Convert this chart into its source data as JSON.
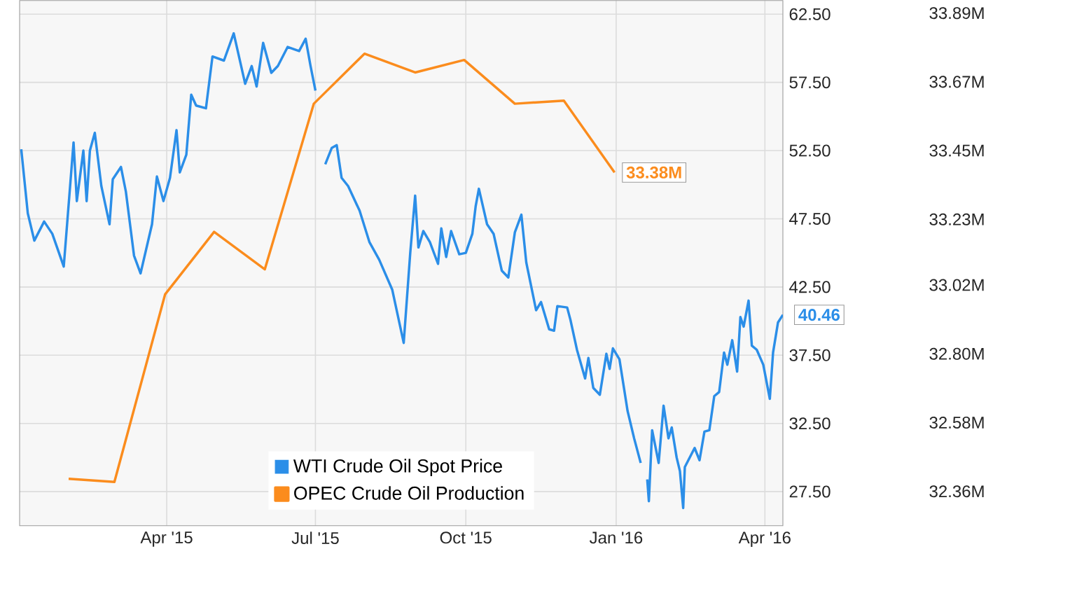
{
  "chart_data": {
    "type": "line",
    "xlim": [
      "2015-01-01",
      "2016-04-12"
    ],
    "xticks": [
      {
        "value": "2015-04-01",
        "label": "Apr '15"
      },
      {
        "value": "2015-07-01",
        "label": "Jul '15"
      },
      {
        "value": "2015-10-01",
        "label": "Oct '15"
      },
      {
        "value": "2016-01-01",
        "label": "Jan '16"
      },
      {
        "value": "2016-04-01",
        "label": "Apr '16"
      }
    ],
    "ylim": [
      25,
      63.5
    ],
    "yticks": [
      {
        "value": 27.5,
        "label": "27.50"
      },
      {
        "value": 32.5,
        "label": "32.50"
      },
      {
        "value": 37.5,
        "label": "37.50"
      },
      {
        "value": 42.5,
        "label": "42.50"
      },
      {
        "value": 47.5,
        "label": "47.50"
      },
      {
        "value": 52.5,
        "label": "52.50"
      },
      {
        "value": 57.5,
        "label": "57.50"
      },
      {
        "value": 62.5,
        "label": "62.50"
      }
    ],
    "y2lim": [
      32.25,
      33.93
    ],
    "y2ticks": [
      {
        "value": 32.36,
        "label": "32.36M"
      },
      {
        "value": 32.58,
        "label": "32.58M"
      },
      {
        "value": 32.8,
        "label": "32.80M"
      },
      {
        "value": 33.02,
        "label": "33.02M"
      },
      {
        "value": 33.23,
        "label": "33.23M"
      },
      {
        "value": 33.45,
        "label": "33.45M"
      },
      {
        "value": 33.67,
        "label": "33.67M"
      },
      {
        "value": 33.89,
        "label": "33.89M"
      }
    ],
    "grid": true,
    "legend": "bottom",
    "series": [
      {
        "name": "WTI Crude Oil Spot Price",
        "color": "#2b8ee8",
        "axis": "y",
        "x": [
          "2015-01-02",
          "2015-01-06",
          "2015-01-10",
          "2015-01-16",
          "2015-01-21",
          "2015-01-28",
          "2015-02-03",
          "2015-02-05",
          "2015-02-09",
          "2015-02-11",
          "2015-02-13",
          "2015-02-16",
          "2015-02-20",
          "2015-02-25",
          "2015-02-27",
          "2015-03-04",
          "2015-03-07",
          "2015-03-12",
          "2015-03-16",
          "2015-03-23",
          "2015-03-26",
          "2015-03-30",
          "2015-04-03",
          "2015-04-07",
          "2015-04-09",
          "2015-04-13",
          "2015-04-16",
          "2015-04-19",
          "2015-04-25",
          "2015-04-29",
          "2015-05-06",
          "2015-05-12",
          "2015-05-19",
          "2015-05-23",
          "2015-05-26",
          "2015-05-30",
          "2015-06-04",
          "2015-06-08",
          "2015-06-14",
          "2015-06-21",
          "2015-06-25",
          "2015-06-28",
          "2015-07-01",
          "2015-07-04",
          "2015-07-07",
          "2015-07-11",
          "2015-07-14",
          "2015-07-17",
          "2015-07-21",
          "2015-07-28",
          "2015-08-03",
          "2015-08-09",
          "2015-08-17",
          "2015-08-24",
          "2015-08-28",
          "2015-08-31",
          "2015-09-02",
          "2015-09-05",
          "2015-09-09",
          "2015-09-14",
          "2015-09-16",
          "2015-09-19",
          "2015-09-22",
          "2015-09-27",
          "2015-10-01",
          "2015-10-05",
          "2015-10-07",
          "2015-10-09",
          "2015-10-14",
          "2015-10-18",
          "2015-10-23",
          "2015-10-27",
          "2015-10-31",
          "2015-11-04",
          "2015-11-07",
          "2015-11-13",
          "2015-11-16",
          "2015-11-21",
          "2015-11-24",
          "2015-11-26",
          "2015-12-02",
          "2015-12-04",
          "2015-12-08",
          "2015-12-13",
          "2015-12-15",
          "2015-12-18",
          "2015-12-22",
          "2015-12-26",
          "2015-12-28",
          "2015-12-30",
          "2016-01-03",
          "2016-01-08",
          "2016-01-12",
          "2016-01-16",
          "2016-01-18",
          "2016-01-20",
          "2016-01-21",
          "2016-01-23",
          "2016-01-27",
          "2016-01-30",
          "2016-02-02",
          "2016-02-04",
          "2016-02-07",
          "2016-02-09",
          "2016-02-11",
          "2016-02-12",
          "2016-02-18",
          "2016-02-21",
          "2016-02-24",
          "2016-02-27",
          "2016-03-01",
          "2016-03-04",
          "2016-03-07",
          "2016-03-09",
          "2016-03-12",
          "2016-03-15",
          "2016-03-17",
          "2016-03-19",
          "2016-03-22",
          "2016-03-24",
          "2016-03-27",
          "2016-03-31",
          "2016-04-04",
          "2016-04-06",
          "2016-04-09",
          "2016-04-12"
        ],
        "values": [
          52.6,
          47.9,
          45.9,
          47.3,
          46.4,
          44.0,
          53.1,
          48.8,
          52.5,
          48.8,
          52.5,
          53.8,
          49.9,
          47.1,
          50.4,
          51.3,
          49.5,
          44.8,
          43.5,
          47.1,
          50.6,
          48.8,
          50.5,
          54.0,
          50.9,
          52.2,
          56.6,
          55.8,
          55.6,
          59.4,
          59.1,
          61.1,
          57.4,
          58.7,
          57.2,
          60.4,
          58.2,
          58.7,
          60.1,
          59.8,
          60.7,
          58.7,
          56.9,
          null,
          51.5,
          52.7,
          52.9,
          50.5,
          49.9,
          48.1,
          45.8,
          44.5,
          42.3,
          38.4,
          45.0,
          49.2,
          45.4,
          46.6,
          45.8,
          44.2,
          46.8,
          44.7,
          46.6,
          44.9,
          45.0,
          46.4,
          48.4,
          49.7,
          47.1,
          46.4,
          43.7,
          43.2,
          46.5,
          47.8,
          44.3,
          40.8,
          41.4,
          39.4,
          39.3,
          41.1,
          41.0,
          40.1,
          37.9,
          35.8,
          37.3,
          35.1,
          34.6,
          37.6,
          36.5,
          38.0,
          37.2,
          33.4,
          31.4,
          29.6,
          null,
          28.4,
          26.8,
          32.0,
          29.6,
          33.8,
          31.4,
          32.2,
          30.0,
          29.0,
          26.3,
          29.3,
          30.7,
          29.8,
          31.9,
          32.0,
          34.5,
          34.8,
          37.7,
          36.8,
          38.6,
          36.3,
          40.3,
          39.6,
          41.5,
          38.2,
          37.9,
          36.8,
          34.3,
          37.7,
          39.9,
          40.46
        ],
        "value_labels": [
          null,
          null,
          null,
          null,
          null,
          null,
          null,
          null,
          null,
          null,
          null,
          null,
          null,
          null,
          null,
          null,
          null,
          null,
          null,
          null,
          null,
          null,
          null,
          null,
          null,
          null,
          null,
          null,
          null,
          null,
          null,
          null,
          null,
          null,
          null,
          null,
          null,
          null,
          null,
          null,
          null,
          null,
          null,
          null,
          null,
          null,
          null,
          null,
          null,
          null,
          null,
          null,
          null,
          null,
          null,
          null,
          null,
          null,
          null,
          null,
          null,
          null,
          null,
          null,
          null,
          null,
          null,
          null,
          null,
          null,
          null,
          null,
          null,
          null,
          null,
          null,
          null,
          null,
          null,
          null,
          null,
          null,
          null,
          null,
          null,
          null,
          null,
          null,
          null,
          null,
          null,
          null,
          null,
          null,
          null,
          null,
          null,
          null,
          null,
          null,
          null,
          null,
          null,
          null,
          null,
          null,
          null,
          null,
          null,
          null,
          null,
          null,
          null,
          null,
          null,
          null,
          null,
          null,
          null,
          null,
          null,
          null,
          null,
          null,
          null,
          "40.46"
        ]
      },
      {
        "name": "OPEC Crude Oil Production",
        "color": "#fb8c1d",
        "axis": "y2",
        "x": [
          "2015-01-31",
          "2015-02-28",
          "2015-03-31",
          "2015-04-30",
          "2015-05-31",
          "2015-06-30",
          "2015-07-31",
          "2015-08-31",
          "2015-09-30",
          "2015-10-31",
          "2015-11-30",
          "2015-12-31"
        ],
        "values": [
          32.4,
          32.39,
          32.99,
          33.19,
          33.07,
          33.6,
          33.76,
          33.7,
          33.74,
          33.6,
          33.61,
          33.38
        ],
        "value_labels": [
          null,
          null,
          null,
          null,
          null,
          null,
          null,
          null,
          null,
          null,
          null,
          "33.38M"
        ]
      }
    ]
  }
}
